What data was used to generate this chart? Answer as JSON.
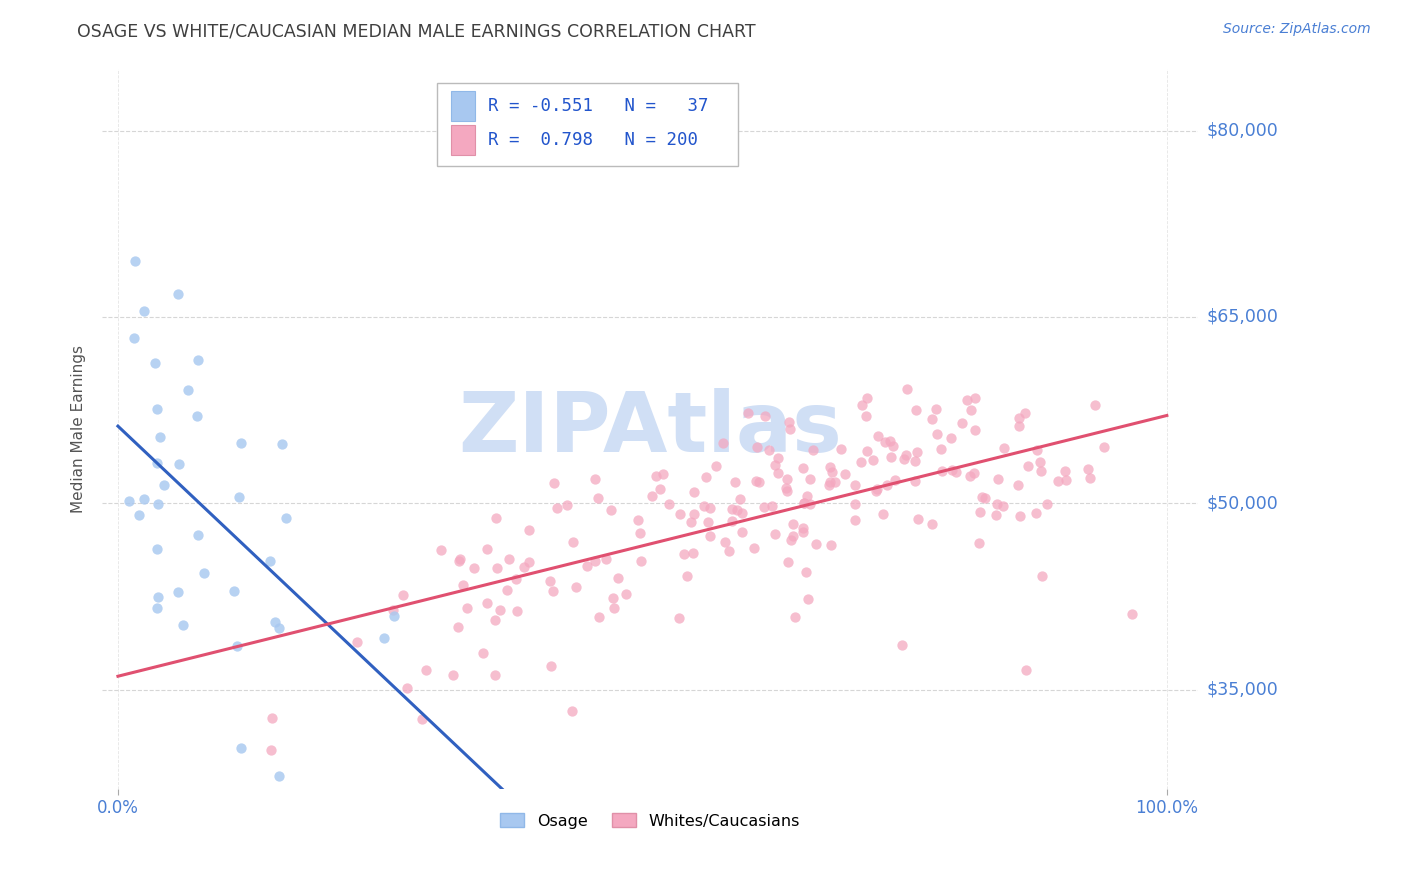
{
  "title": "OSAGE VS WHITE/CAUCASIAN MEDIAN MALE EARNINGS CORRELATION CHART",
  "source_text": "Source: ZipAtlas.com",
  "ylabel": "Median Male Earnings",
  "ytick_vals": [
    35000,
    50000,
    65000,
    80000
  ],
  "ytick_labels": [
    "$35,000",
    "$50,000",
    "$65,000",
    "$80,000"
  ],
  "xtick_labels": [
    "0.0%",
    "100.0%"
  ],
  "color_osage_dot": "#a8c8f0",
  "color_white_dot": "#f4a8c0",
  "color_osage_line": "#3060c0",
  "color_white_line": "#e05070",
  "color_axis_labels": "#4a7fd4",
  "watermark_color": "#d0dff5",
  "background_color": "#ffffff",
  "grid_color": "#cccccc",
  "title_color": "#404040",
  "legend_entry1": "R = -0.551   N =   37",
  "legend_entry2": "R =  0.798   N = 200",
  "bottom_label1": "Osage",
  "bottom_label2": "Whites/Caucasians"
}
